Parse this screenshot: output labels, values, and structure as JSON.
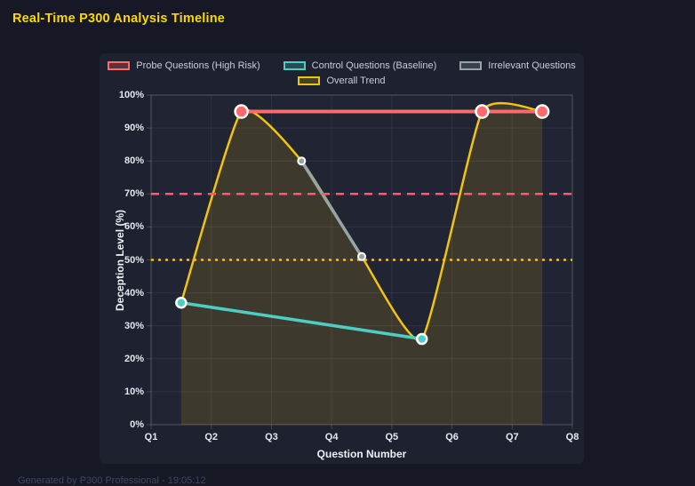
{
  "page": {
    "title": "Real-Time P300 Analysis Timeline",
    "footer": "Generated by P300 Professional - 19:05:12"
  },
  "colors": {
    "background": "#161925",
    "panel": "#1d2130",
    "title": "#ffd700",
    "probe": "#ff6b6b",
    "control": "#4ecdc4",
    "irrelevant": "#95a5a6",
    "trend": "#f1c40f",
    "threshold_high": "#f25f6f",
    "threshold_mid": "#f1c40f",
    "grid": "rgba(255,255,255,0.07)",
    "axis_border": "rgba(255,255,255,0.18)",
    "tick_text": "#e6e8ef"
  },
  "chart_data": {
    "type": "line",
    "title": "Real-Time P300 Analysis Timeline",
    "xlabel": "Question Number",
    "ylabel": "Deception Level (%)",
    "xlim": [
      1,
      8
    ],
    "ylim": [
      0,
      100
    ],
    "grid": true,
    "legend_position": "top",
    "x_ticks": {
      "values": [
        1,
        2,
        3,
        4,
        5,
        6,
        7,
        8
      ],
      "labels": [
        "Q1",
        "Q2",
        "Q3",
        "Q4",
        "Q5",
        "Q6",
        "Q7",
        "Q8"
      ]
    },
    "y_ticks": {
      "values": [
        0,
        10,
        20,
        30,
        40,
        50,
        60,
        70,
        80,
        90,
        100
      ],
      "labels": [
        "0%",
        "10%",
        "20%",
        "30%",
        "40%",
        "50%",
        "60%",
        "70%",
        "80%",
        "90%",
        "100%"
      ]
    },
    "legend": [
      {
        "label": "Probe Questions (High Risk)",
        "color": "#ff6b6b",
        "box_fill": "rgba(255,107,107,0.25)",
        "row": 0
      },
      {
        "label": "Control Questions (Baseline)",
        "color": "#4ecdc4",
        "box_fill": "rgba(78,205,196,0.25)",
        "row": 0
      },
      {
        "label": "Irrelevant Questions",
        "color": "#95a5a6",
        "box_fill": "rgba(149,165,166,0.25)",
        "row": 0
      },
      {
        "label": "Overall Trend",
        "color": "#f1c40f",
        "box_fill": "rgba(241,196,15,0.2)",
        "row": 1
      }
    ],
    "series": [
      {
        "name": "Probe Questions (High Risk)",
        "color": "#ff6b6b",
        "line_width": 4,
        "point_radius": 7,
        "point_border": 2.5,
        "smooth": false,
        "points": [
          [
            2.5,
            95
          ],
          [
            6.5,
            95
          ],
          [
            7.5,
            95
          ]
        ]
      },
      {
        "name": "Control Questions (Baseline)",
        "color": "#4ecdc4",
        "line_width": 3.5,
        "point_radius": 5.5,
        "point_border": 2.5,
        "smooth": false,
        "points": [
          [
            1.5,
            37
          ],
          [
            5.5,
            26
          ]
        ]
      },
      {
        "name": "Irrelevant Questions",
        "color": "#95a5a6",
        "line_width": 3.5,
        "point_radius": 4,
        "point_border": 2,
        "smooth": false,
        "points": [
          [
            3.5,
            80
          ],
          [
            4.5,
            51
          ]
        ]
      },
      {
        "name": "Overall Trend",
        "color": "#f1c40f",
        "line_width": 2.5,
        "point_radius": 0,
        "point_border": 0,
        "smooth": true,
        "fill_to_zero": "rgba(241,196,15,0.14)",
        "points": [
          [
            1.5,
            37
          ],
          [
            2.5,
            95
          ],
          [
            3.5,
            80
          ],
          [
            4.5,
            51
          ],
          [
            5.5,
            26
          ],
          [
            6.5,
            95
          ],
          [
            7.5,
            95
          ]
        ]
      }
    ],
    "thresholds": [
      {
        "value": 70,
        "color": "#f25f6f",
        "dash": [
          9,
          7
        ],
        "width": 2.5
      },
      {
        "value": 50,
        "color": "#f1c40f",
        "dash": [
          3,
          5
        ],
        "width": 2.5
      }
    ]
  }
}
